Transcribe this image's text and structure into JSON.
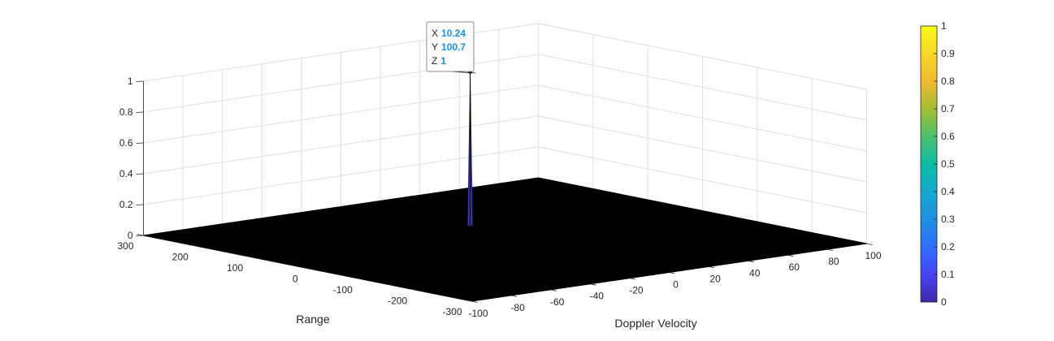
{
  "chart_data": {
    "type": "surface",
    "xlabel": "Doppler Velocity",
    "ylabel": "Range",
    "zlabel": "",
    "xlim": [
      -100,
      100
    ],
    "ylim": [
      -300,
      300
    ],
    "zlim": [
      0,
      1
    ],
    "x_ticks": [
      "-100",
      "-80",
      "-60",
      "-40",
      "-20",
      "0",
      "20",
      "40",
      "60",
      "80",
      "100"
    ],
    "y_ticks": [
      "-300",
      "-200",
      "-100",
      "0",
      "100",
      "200",
      "300"
    ],
    "z_ticks": [
      "0",
      "0.2",
      "0.4",
      "0.6",
      "0.8",
      "1"
    ],
    "grid": true,
    "surface_base_value": 0,
    "peak": {
      "x": 10.24,
      "y": 100.7,
      "z": 1
    },
    "colormap": "parula",
    "colorbar": {
      "location": "right",
      "limits": [
        0,
        1
      ],
      "ticks": [
        "0",
        "0.1",
        "0.2",
        "0.3",
        "0.4",
        "0.5",
        "0.6",
        "0.7",
        "0.8",
        "0.9",
        "1"
      ],
      "colors": [
        "#3e26a8",
        "#4744f5",
        "#2f6ffb",
        "#2090e1",
        "#15a9ce",
        "#0cbba4",
        "#4ac16d",
        "#a4bd32",
        "#f2ba31",
        "#f8d72a",
        "#f9fb15"
      ]
    },
    "datatip": {
      "x_key": "X",
      "x_value": "10.24",
      "y_key": "Y",
      "y_value": "100.7",
      "z_key": "Z",
      "z_value": "1"
    },
    "colors": {
      "surface_fill": "#000000",
      "peak": "#3b37b0",
      "grid": "#dedede",
      "axis": "#262626"
    }
  }
}
